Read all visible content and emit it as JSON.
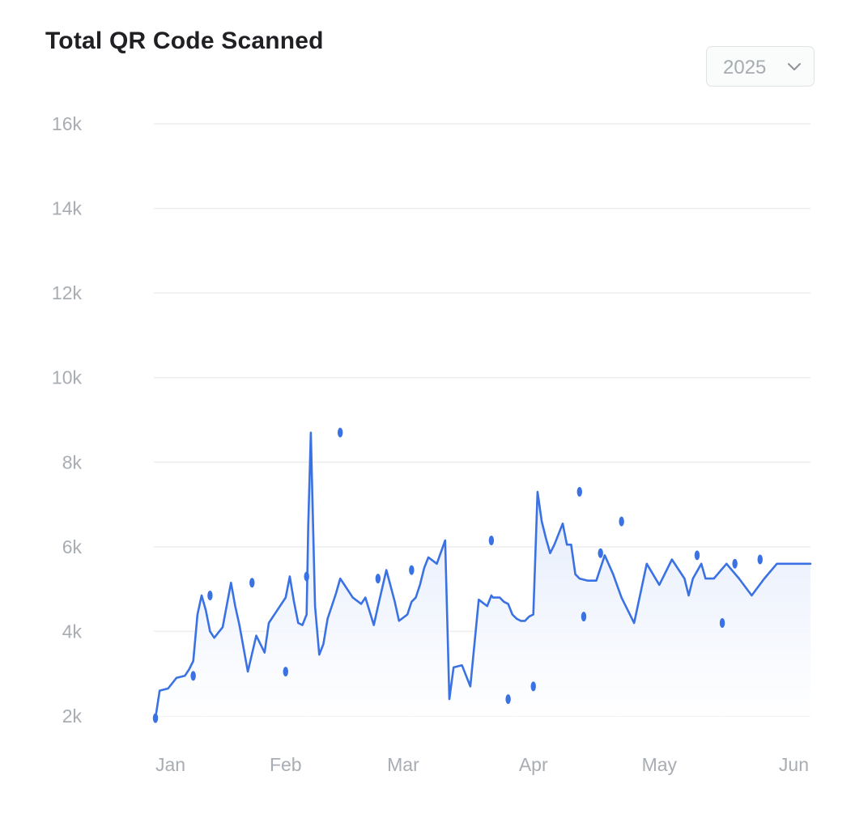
{
  "header": {
    "title": "Total QR Code Scanned"
  },
  "year_select": {
    "value": "2025",
    "icon": "chevron-down-icon"
  },
  "colors": {
    "line": "#3b72e3",
    "fill_top": "#dbe5fa",
    "fill_bottom": "#ffffff",
    "grid": "#eeeeee"
  },
  "chart_data": {
    "type": "area",
    "title": "Total QR Code Scanned",
    "xlabel": "",
    "ylabel": "",
    "y_ticks": [
      "2k",
      "4k",
      "6k",
      "8k",
      "10k",
      "12k",
      "14k",
      "16k"
    ],
    "y_tick_values": [
      2000,
      4000,
      6000,
      8000,
      10000,
      12000,
      14000,
      16000
    ],
    "ylim": [
      2000,
      16000
    ],
    "x_tick_labels": [
      "Jan",
      "Feb",
      "Mar",
      "Apr",
      "May",
      "Jun"
    ],
    "x_tick_values": [
      "2025-01-01",
      "2025-02-01",
      "2025-03-01",
      "2025-04-01",
      "2025-05-01",
      "2025-06-01"
    ],
    "xlim": [
      "2025-01-01",
      "2025-06-06"
    ],
    "grid": true,
    "legend": "none",
    "series": [
      {
        "x": [
          "2025-01-01",
          "2025-01-02",
          "2025-01-04",
          "2025-01-06",
          "2025-01-08",
          "2025-01-09",
          "2025-01-10",
          "2025-01-11",
          "2025-01-12",
          "2025-01-13",
          "2025-01-14",
          "2025-01-15",
          "2025-01-17",
          "2025-01-19",
          "2025-01-20",
          "2025-01-21",
          "2025-01-23",
          "2025-01-25",
          "2025-01-27",
          "2025-01-28",
          "2025-01-30",
          "2025-02-01",
          "2025-02-02",
          "2025-02-03",
          "2025-02-04",
          "2025-02-05",
          "2025-02-06",
          "2025-02-06",
          "2025-02-07",
          "2025-02-08",
          "2025-02-09",
          "2025-02-10",
          "2025-02-11",
          "2025-02-12",
          "2025-02-13",
          "2025-02-14",
          "2025-02-15",
          "2025-02-16",
          "2025-02-17",
          "2025-02-19",
          "2025-02-20",
          "2025-02-22",
          "2025-02-23",
          "2025-02-25",
          "2025-02-27",
          "2025-02-28",
          "2025-03-02",
          "2025-03-03",
          "2025-03-04",
          "2025-03-05",
          "2025-03-06",
          "2025-03-07",
          "2025-03-09",
          "2025-03-11",
          "2025-03-12",
          "2025-03-13",
          "2025-03-15",
          "2025-03-17",
          "2025-03-19",
          "2025-03-21",
          "2025-03-22",
          "2025-03-22",
          "2025-03-24",
          "2025-03-25",
          "2025-03-26",
          "2025-03-27",
          "2025-03-28",
          "2025-03-29",
          "2025-03-30",
          "2025-03-31",
          "2025-04-01",
          "2025-04-02",
          "2025-04-03",
          "2025-04-04",
          "2025-04-05",
          "2025-04-06",
          "2025-04-08",
          "2025-04-09",
          "2025-04-10",
          "2025-04-11",
          "2025-04-12",
          "2025-04-14",
          "2025-04-16",
          "2025-04-18",
          "2025-04-20",
          "2025-04-22",
          "2025-04-25",
          "2025-04-28",
          "2025-05-01",
          "2025-05-04",
          "2025-05-07",
          "2025-05-08",
          "2025-05-09",
          "2025-05-11",
          "2025-05-12",
          "2025-05-14",
          "2025-05-17",
          "2025-05-20",
          "2025-05-23",
          "2025-05-26",
          "2025-05-29",
          "2025-06-01",
          "2025-06-02",
          "2025-06-03",
          "2025-06-04",
          "2025-06-06"
        ],
        "y": [
          1950,
          2600,
          2650,
          2900,
          2950,
          3100,
          3300,
          4400,
          4850,
          4500,
          4000,
          3850,
          4100,
          5150,
          4600,
          4150,
          3050,
          3900,
          3500,
          4200,
          4500,
          4800,
          5300,
          4700,
          4200,
          4150,
          4400,
          6500,
          8700,
          4600,
          3450,
          3700,
          4300,
          4600,
          4900,
          5250,
          5100,
          4950,
          4800,
          4650,
          4800,
          4150,
          4600,
          5450,
          4700,
          4250,
          4400,
          4700,
          4800,
          5100,
          5500,
          5750,
          5600,
          6150,
          2400,
          3150,
          3200,
          2700,
          4750,
          4600,
          4850,
          4800,
          4800,
          4700,
          4650,
          4400,
          4300,
          4250,
          4250,
          4350,
          4400,
          7300,
          6600,
          6200,
          5850,
          6050,
          6550,
          6050,
          6050,
          5350,
          5250,
          5200,
          5200,
          5800,
          5350,
          4800,
          4200,
          5600,
          5100,
          5700,
          5250,
          4850,
          5250,
          5600,
          5250,
          5250,
          5600,
          5250,
          4850,
          5250,
          5600,
          5600,
          5600,
          5600,
          5600,
          5600
        ]
      }
    ],
    "markers": [
      {
        "x": "2025-01-01",
        "y": 1950
      },
      {
        "x": "2025-01-10",
        "y": 2950
      },
      {
        "x": "2025-01-14",
        "y": 4850
      },
      {
        "x": "2025-01-24",
        "y": 5150
      },
      {
        "x": "2025-02-01",
        "y": 3050
      },
      {
        "x": "2025-02-06",
        "y": 5300
      },
      {
        "x": "2025-02-14",
        "y": 8700
      },
      {
        "x": "2025-02-23",
        "y": 5250
      },
      {
        "x": "2025-03-03",
        "y": 5450
      },
      {
        "x": "2025-03-22",
        "y": 6150
      },
      {
        "x": "2025-03-26",
        "y": 2400
      },
      {
        "x": "2025-04-01",
        "y": 2700
      },
      {
        "x": "2025-04-12",
        "y": 7300
      },
      {
        "x": "2025-04-13",
        "y": 4350
      },
      {
        "x": "2025-04-17",
        "y": 5850
      },
      {
        "x": "2025-04-22",
        "y": 6600
      },
      {
        "x": "2025-05-10",
        "y": 5800
      },
      {
        "x": "2025-05-16",
        "y": 4200
      },
      {
        "x": "2025-05-19",
        "y": 5600
      },
      {
        "x": "2025-05-25",
        "y": 5700
      }
    ]
  }
}
